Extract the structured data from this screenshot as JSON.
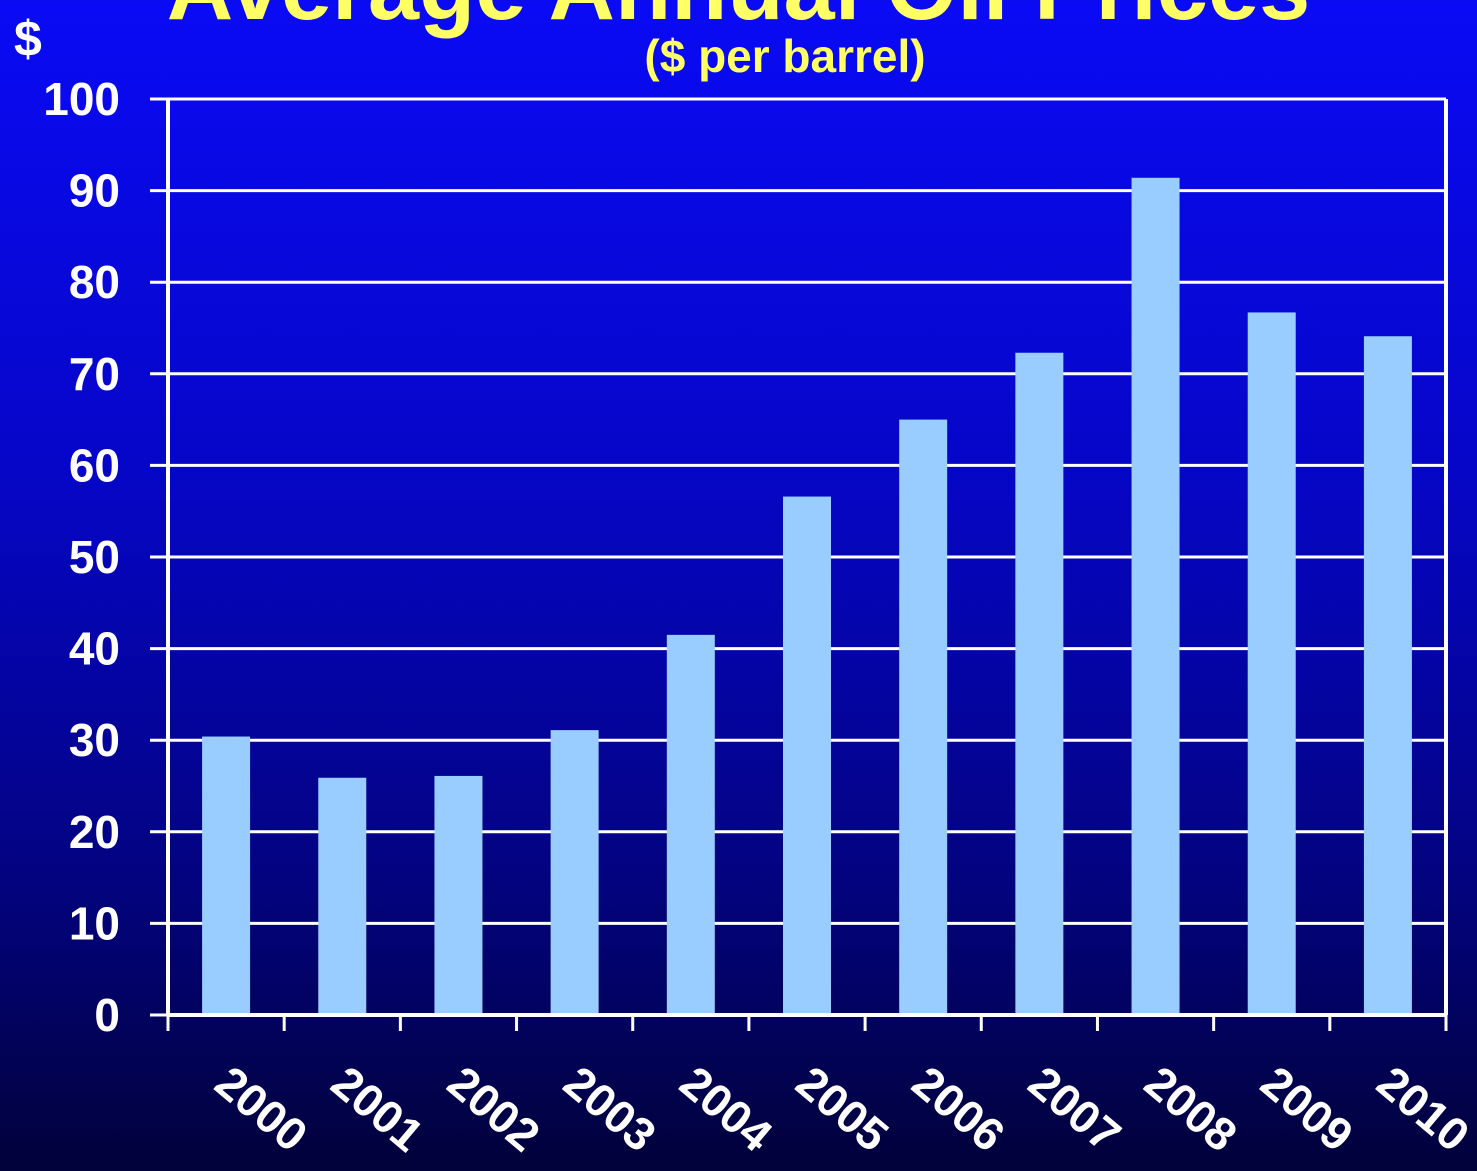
{
  "chart_data": {
    "type": "bar",
    "title": "Average Annual Oil Prices",
    "subtitle": "($ per barrel)",
    "ylabel": "$",
    "xlabel": "",
    "categories": [
      "2000",
      "2001",
      "2002",
      "2003",
      "2004",
      "2005",
      "2006",
      "2007",
      "2008",
      "2009",
      "2010"
    ],
    "values": [
      30.4,
      25.9,
      26.1,
      31.1,
      41.5,
      56.6,
      65.0,
      72.3,
      91.4,
      76.7,
      74.1
    ],
    "ylim": [
      0,
      100
    ],
    "yticks": [
      0,
      10,
      20,
      30,
      40,
      50,
      60,
      70,
      80,
      90,
      100
    ],
    "grid": true,
    "legend": "none",
    "colors": {
      "bar": "#99ccff",
      "title": "#ffff66",
      "axis": "#ffffff",
      "grid": "#ffffff"
    }
  }
}
